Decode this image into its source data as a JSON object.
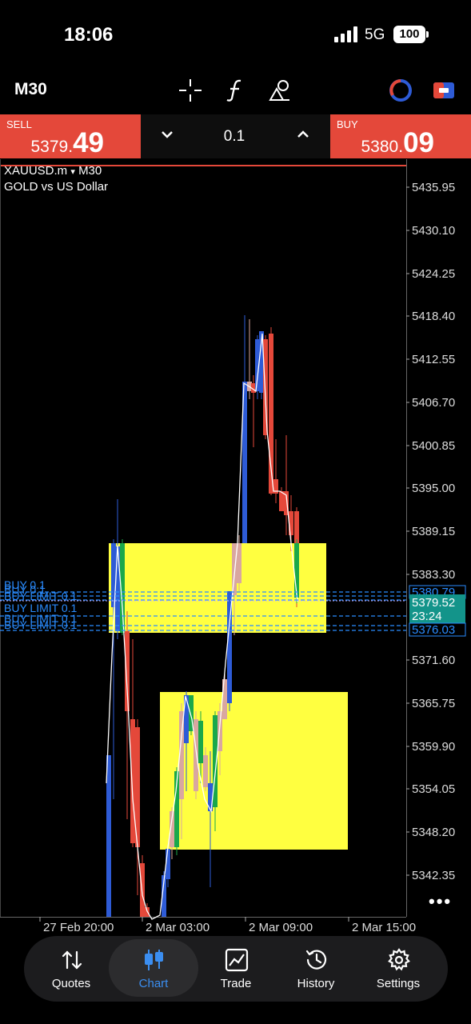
{
  "status_bar": {
    "time": "18:06",
    "network": "5G",
    "battery": "100"
  },
  "toolbar": {
    "timeframe": "M30",
    "icons": [
      "crosshair-icon",
      "function-icon",
      "objects-icon",
      "timeframe-circle-icon",
      "trade-toggle-icon"
    ]
  },
  "trade": {
    "sell_label": "SELL",
    "sell_price_small": "5379.",
    "sell_price_big": "49",
    "buy_label": "BUY",
    "buy_price_small": "5380.",
    "buy_price_big": "09",
    "volume": "0.1",
    "sell_color": "#e4483a",
    "buy_color": "#e4483a"
  },
  "chart": {
    "symbol": "XAUUSD.m",
    "symbol_caret": "▾",
    "timeframe": "M30",
    "description": "GOLD vs US Dollar",
    "price_labels": [
      "5435.95",
      "5430.10",
      "5424.25",
      "5418.40",
      "5412.55",
      "5406.70",
      "5400.85",
      "5395.00",
      "5389.15",
      "5383.30",
      "5371.60",
      "5365.75",
      "5359.90",
      "5354.05",
      "5348.20",
      "5342.35"
    ],
    "time_labels": [
      "27 Feb 20:00",
      "2 Mar 03:00",
      "2 Mar 09:00",
      "2 Mar 15:00"
    ],
    "current_bid": "5379.52",
    "countdown": "23:24",
    "order_price_upper": "5380.79",
    "order_price_lower": "5376.03",
    "order_labels": [
      "BUY 0.1",
      "BUY 0.1",
      "BUY LIMIT 0.1",
      "BUY LIMIT 0.1",
      "BUY LIMIT 0.1",
      "BUY LIMIT 0.1"
    ],
    "more_glyph": "•••",
    "colors": {
      "bull": "#2e5bd6",
      "bear": "#e4483a",
      "zone": "#ffff40",
      "order_line": "#2a8cff",
      "bid_box": "#13948a"
    }
  },
  "nav": {
    "items": [
      {
        "label": "Quotes",
        "icon": "quotes-arrows-icon"
      },
      {
        "label": "Chart",
        "icon": "chart-candles-icon"
      },
      {
        "label": "Trade",
        "icon": "trade-line-icon"
      },
      {
        "label": "History",
        "icon": "history-clock-icon"
      },
      {
        "label": "Settings",
        "icon": "settings-gear-icon"
      }
    ],
    "active": "Chart",
    "active_color": "#3b8ef0"
  }
}
